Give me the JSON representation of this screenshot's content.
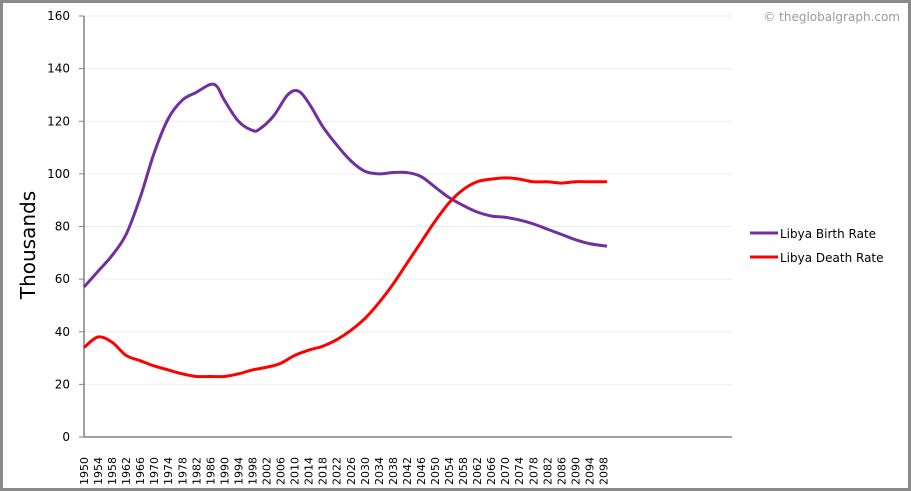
{
  "watermark": "© theglobalgraph.com",
  "chart_data": {
    "type": "line",
    "title": "",
    "xlabel": "",
    "ylabel": "Thousands",
    "ylim": [
      0,
      160
    ],
    "yticks": [
      0,
      20,
      40,
      60,
      80,
      100,
      120,
      140,
      160
    ],
    "xlim": [
      1950,
      2099
    ],
    "xticks": [
      1950,
      1954,
      1958,
      1962,
      1966,
      1970,
      1974,
      1978,
      1982,
      1986,
      1990,
      1994,
      1998,
      2002,
      2006,
      2010,
      2014,
      2018,
      2022,
      2026,
      2030,
      2034,
      2038,
      2042,
      2046,
      2050,
      2054,
      2058,
      2062,
      2066,
      2070,
      2074,
      2078,
      2082,
      2086,
      2090,
      2094,
      2098
    ],
    "grid": true,
    "legend_position": "right",
    "series": [
      {
        "name": "Libya Birth Rate",
        "color": "#7030a0",
        "x": [
          1950,
          1954,
          1958,
          1962,
          1966,
          1970,
          1974,
          1978,
          1982,
          1986,
          1988,
          1990,
          1994,
          1998,
          2000,
          2004,
          2008,
          2011,
          2014,
          2018,
          2022,
          2026,
          2030,
          2034,
          2038,
          2042,
          2046,
          2050,
          2054,
          2058,
          2062,
          2066,
          2070,
          2074,
          2078,
          2082,
          2086,
          2090,
          2094,
          2099
        ],
        "values": [
          57,
          63,
          69,
          77,
          91,
          108,
          121,
          128,
          131,
          134,
          133,
          128,
          120,
          116.5,
          117,
          122,
          130,
          131.5,
          127,
          118,
          111,
          105,
          101,
          100,
          100.5,
          100.5,
          99,
          95,
          91,
          88,
          85.5,
          84,
          83.5,
          82.5,
          81,
          79,
          77,
          75,
          73.5,
          72.5
        ]
      },
      {
        "name": "Libya Death Rate",
        "color": "#ff0000",
        "x": [
          1950,
          1954,
          1958,
          1962,
          1966,
          1970,
          1974,
          1978,
          1982,
          1986,
          1990,
          1994,
          1998,
          2002,
          2006,
          2010,
          2014,
          2018,
          2022,
          2026,
          2030,
          2034,
          2038,
          2042,
          2046,
          2050,
          2054,
          2058,
          2062,
          2066,
          2070,
          2074,
          2078,
          2082,
          2086,
          2090,
          2094,
          2099
        ],
        "values": [
          34,
          38,
          36,
          31,
          29,
          27,
          25.5,
          24,
          23,
          23,
          23,
          24,
          25.5,
          26.5,
          28,
          31,
          33,
          34.5,
          37,
          40.5,
          45,
          51,
          58,
          66,
          74,
          82,
          89,
          94,
          97,
          98,
          98.5,
          98,
          97,
          97,
          96.5,
          97,
          97,
          97
        ]
      }
    ]
  },
  "legend": {
    "items": [
      {
        "label": "Libya Birth Rate",
        "color": "#7030a0"
      },
      {
        "label": "Libya Death Rate",
        "color": "#ff0000"
      }
    ]
  },
  "colors": {
    "axis": "#808080",
    "grid": "#eeeeee",
    "frame": "#8a8a8a"
  }
}
